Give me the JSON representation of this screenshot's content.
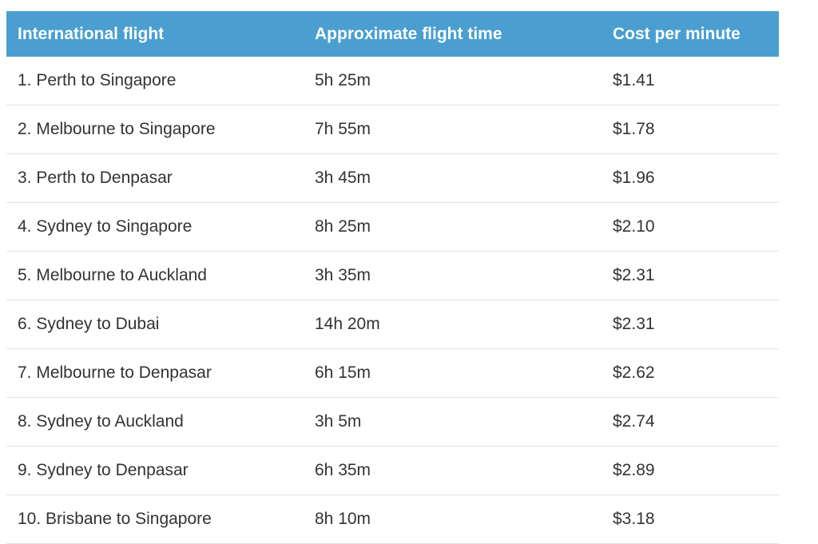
{
  "table": {
    "header": [
      "International flight",
      "Approximate flight time",
      "Cost per minute"
    ],
    "rows": [
      [
        "1. Perth to Singapore",
        "5h 25m",
        "$1.41"
      ],
      [
        "2. Melbourne to Singapore",
        "7h 55m",
        "$1.78"
      ],
      [
        "3. Perth to Denpasar",
        "3h 45m",
        "$1.96"
      ],
      [
        "4. Sydney to Singapore",
        "8h 25m",
        "$2.10"
      ],
      [
        "5. Melbourne to Auckland",
        "3h 35m",
        "$2.31"
      ],
      [
        "6. Sydney to Dubai",
        "14h 20m",
        "$2.31"
      ],
      [
        "7. Melbourne to Denpasar",
        "6h 15m",
        "$2.62"
      ],
      [
        "8. Sydney to Auckland",
        "3h 5m",
        "$2.74"
      ],
      [
        "9. Sydney to Denpasar",
        "6h 35m",
        "$2.89"
      ],
      [
        "10. Brisbane to Singapore",
        "8h 10m",
        "$3.18"
      ]
    ]
  }
}
